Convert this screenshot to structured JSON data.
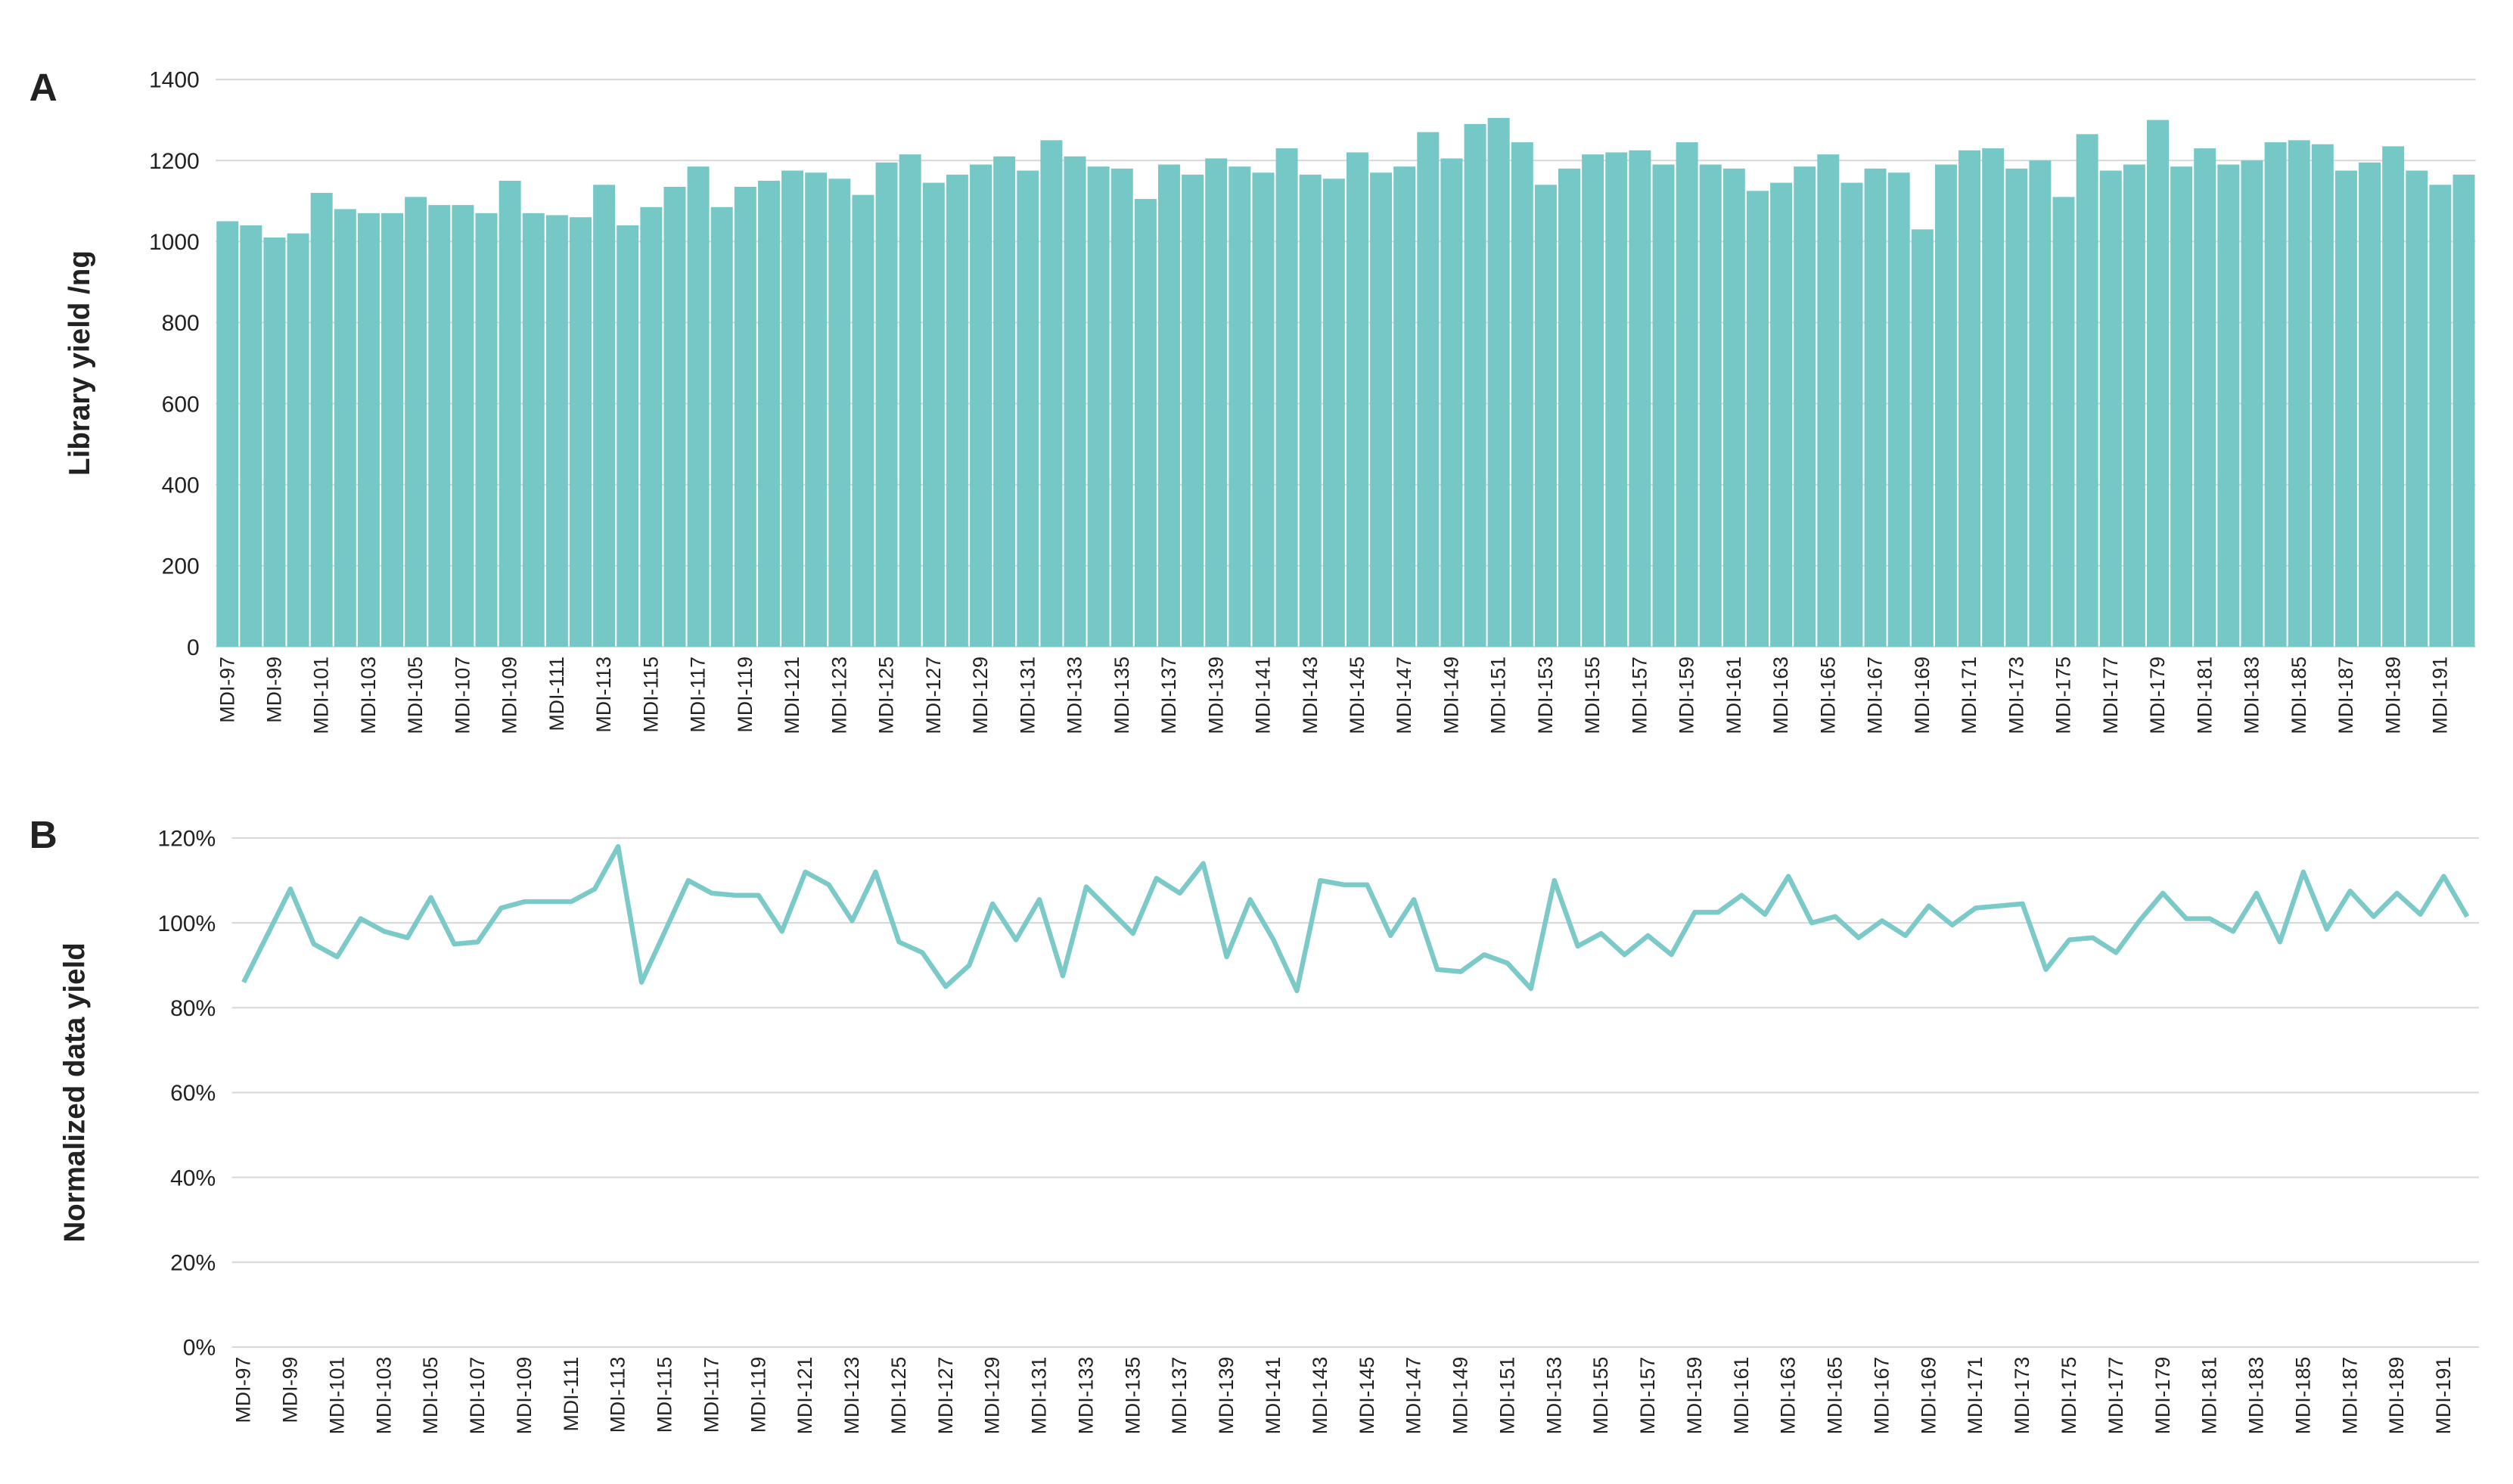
{
  "chart_data": [
    {
      "type": "bar",
      "panel_label": "A",
      "y_label": "Library yield /ng",
      "color": "#76c8c6",
      "grid": true,
      "categories": [
        "MDI-97",
        null,
        "MDI-99",
        null,
        "MDI-101",
        null,
        "MDI-103",
        null,
        "MDI-105",
        null,
        "MDI-107",
        null,
        "MDI-109",
        null,
        "MDI-111",
        null,
        "MDI-113",
        null,
        "MDI-115",
        null,
        "MDI-117",
        null,
        "MDI-119",
        null,
        "MDI-121",
        null,
        "MDI-123",
        null,
        "MDI-125",
        null,
        "MDI-127",
        null,
        "MDI-129",
        null,
        "MDI-131",
        null,
        "MDI-133",
        null,
        "MDI-135",
        null,
        "MDI-137",
        null,
        "MDI-139",
        null,
        "MDI-141",
        null,
        "MDI-143",
        null,
        "MDI-145",
        null,
        "MDI-147",
        null,
        "MDI-149",
        null,
        "MDI-151",
        null,
        "MDI-153",
        null,
        "MDI-155",
        null,
        "MDI-157",
        null,
        "MDI-159",
        null,
        "MDI-161",
        null,
        "MDI-163",
        null,
        "MDI-165",
        null,
        "MDI-167",
        null,
        "MDI-169",
        null,
        "MDI-171",
        null,
        "MDI-173",
        null,
        "MDI-175",
        null,
        "MDI-177",
        null,
        "MDI-179",
        null,
        "MDI-181",
        null,
        "MDI-183",
        null,
        "MDI-185",
        null,
        "MDI-187",
        null,
        "MDI-189",
        null,
        "MDI-191",
        null
      ],
      "values": [
        1050,
        1040,
        1010,
        1020,
        1120,
        1080,
        1070,
        1070,
        1110,
        1090,
        1090,
        1070,
        1150,
        1070,
        1065,
        1060,
        1140,
        1040,
        1085,
        1135,
        1185,
        1085,
        1135,
        1150,
        1175,
        1170,
        1155,
        1115,
        1195,
        1215,
        1145,
        1165,
        1190,
        1210,
        1175,
        1250,
        1210,
        1185,
        1180,
        1105,
        1190,
        1165,
        1205,
        1185,
        1170,
        1230,
        1165,
        1155,
        1220,
        1170,
        1185,
        1270,
        1205,
        1290,
        1305,
        1245,
        1140,
        1180,
        1215,
        1220,
        1225,
        1190,
        1245,
        1190,
        1180,
        1125,
        1145,
        1185,
        1215,
        1145,
        1180,
        1170,
        1030,
        1190,
        1225,
        1230,
        1180,
        1200,
        1110,
        1265,
        1175,
        1190,
        1300,
        1185,
        1230,
        1190,
        1200,
        1245,
        1250,
        1240,
        1175,
        1195,
        1235,
        1175,
        1140,
        1165
      ],
      "ylim": [
        0,
        1400
      ],
      "yticks": [
        0,
        200,
        400,
        600,
        800,
        1000,
        1200,
        1400
      ]
    },
    {
      "type": "line",
      "panel_label": "B",
      "y_label": "Normalized data yield",
      "color": "#7ccac8",
      "grid": true,
      "categories": [
        "MDI-97",
        null,
        "MDI-99",
        null,
        "MDI-101",
        null,
        "MDI-103",
        null,
        "MDI-105",
        null,
        "MDI-107",
        null,
        "MDI-109",
        null,
        "MDI-111",
        null,
        "MDI-113",
        null,
        "MDI-115",
        null,
        "MDI-117",
        null,
        "MDI-119",
        null,
        "MDI-121",
        null,
        "MDI-123",
        null,
        "MDI-125",
        null,
        "MDI-127",
        null,
        "MDI-129",
        null,
        "MDI-131",
        null,
        "MDI-133",
        null,
        "MDI-135",
        null,
        "MDI-137",
        null,
        "MDI-139",
        null,
        "MDI-141",
        null,
        "MDI-143",
        null,
        "MDI-145",
        null,
        "MDI-147",
        null,
        "MDI-149",
        null,
        "MDI-151",
        null,
        "MDI-153",
        null,
        "MDI-155",
        null,
        "MDI-157",
        null,
        "MDI-159",
        null,
        "MDI-161",
        null,
        "MDI-163",
        null,
        "MDI-165",
        null,
        "MDI-167",
        null,
        "MDI-169",
        null,
        "MDI-171",
        null,
        "MDI-173",
        null,
        "MDI-175",
        null,
        "MDI-177",
        null,
        "MDI-179",
        null,
        "MDI-181",
        null,
        "MDI-183",
        null,
        "MDI-185",
        null,
        "MDI-187",
        null,
        "MDI-189",
        null,
        "MDI-191",
        null
      ],
      "values": [
        86,
        97,
        108,
        95,
        92,
        101,
        98,
        96.5,
        106,
        95,
        95.5,
        103.5,
        105,
        105,
        105,
        108,
        118,
        86,
        98,
        110,
        107,
        106.5,
        106.5,
        98,
        112,
        109,
        100.5,
        112,
        95.5,
        93,
        85,
        90,
        104.5,
        96,
        105.5,
        87.5,
        108.5,
        103,
        97.5,
        110.5,
        107,
        114,
        92,
        105.5,
        96,
        84,
        110,
        109,
        109,
        97,
        105.5,
        89,
        88.5,
        92.5,
        90.5,
        84.5,
        110,
        94.5,
        97.5,
        92.5,
        97,
        92.5,
        102.5,
        102.5,
        106.5,
        102,
        111,
        100,
        101.5,
        96.5,
        100.5,
        97,
        104,
        99.5,
        103.5,
        104,
        104.5,
        89,
        96,
        96.5,
        93,
        100.5,
        107,
        101,
        101,
        98,
        107,
        95.5,
        112,
        98.5,
        107.5,
        101.5,
        107,
        102,
        111,
        101.5
      ],
      "ylim": [
        0,
        120
      ],
      "yticks": [
        {
          "value": 0,
          "label": "0%"
        },
        {
          "value": 20,
          "label": "20%"
        },
        {
          "value": 40,
          "label": "40%"
        },
        {
          "value": 60,
          "label": "60%"
        },
        {
          "value": 80,
          "label": "80%"
        },
        {
          "value": 100,
          "label": "100%"
        },
        {
          "value": 120,
          "label": "120%"
        }
      ]
    }
  ]
}
